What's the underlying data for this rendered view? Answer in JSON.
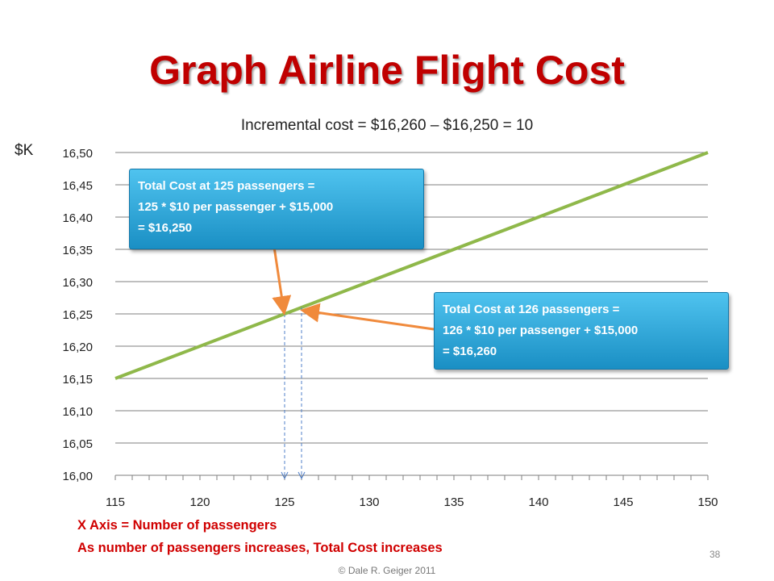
{
  "slide": {
    "title": "Graph Airline Flight Cost",
    "subtitle": "Incremental cost = $16,260 – $16,250 = 10",
    "x_axis_note": "X Axis = Number of passengers",
    "summary_note": "As number of passengers increases, Total Cost increases",
    "slide_number": "38",
    "copyright": "© Dale R. Geiger 2011"
  },
  "callouts": [
    {
      "line1": "Total Cost at 125 passengers =",
      "line2": "125 * $10 per passenger + $15,000",
      "line3": "= $16,250"
    },
    {
      "line1": "Total Cost at 126 passengers =",
      "line2": "126 * $10 per passenger + $15,000",
      "line3": "= $16,260"
    }
  ],
  "colors": {
    "line": "#8fb84a",
    "arrow": "#f08a3c",
    "dashed": "#4f7fc8",
    "gridline": "#7f7f7f",
    "title": "#c00000",
    "note": "#d00000",
    "callout": "#2aa7dc"
  },
  "chart_data": {
    "type": "line",
    "title": "Incremental cost = $16,260 – $16,250 = 10",
    "ylabel": "$K",
    "xlabel": "",
    "xlim": [
      115,
      150
    ],
    "ylim": [
      16.0,
      16.5
    ],
    "x_tick_values": [
      115,
      120,
      125,
      130,
      135,
      140,
      145,
      150
    ],
    "x_tick_labels": [
      "115",
      "120",
      "125",
      "130",
      "135",
      "140",
      "145",
      "150"
    ],
    "y_tick_values": [
      16.0,
      16.05,
      16.1,
      16.15,
      16.2,
      16.25,
      16.3,
      16.35,
      16.4,
      16.45,
      16.5
    ],
    "y_tick_labels": [
      "16,00",
      "16,05",
      "16,10",
      "16,15",
      "16,20",
      "16,25",
      "16,30",
      "16,35",
      "16,40",
      "16,45",
      "16,50"
    ],
    "grid": "horizontal",
    "series": [
      {
        "x": [
          115,
          150
        ],
        "y": [
          16.15,
          16.5
        ]
      }
    ],
    "highlight_points": [
      {
        "x": 125,
        "y": 16.25
      },
      {
        "x": 126,
        "y": 16.26
      }
    ]
  }
}
